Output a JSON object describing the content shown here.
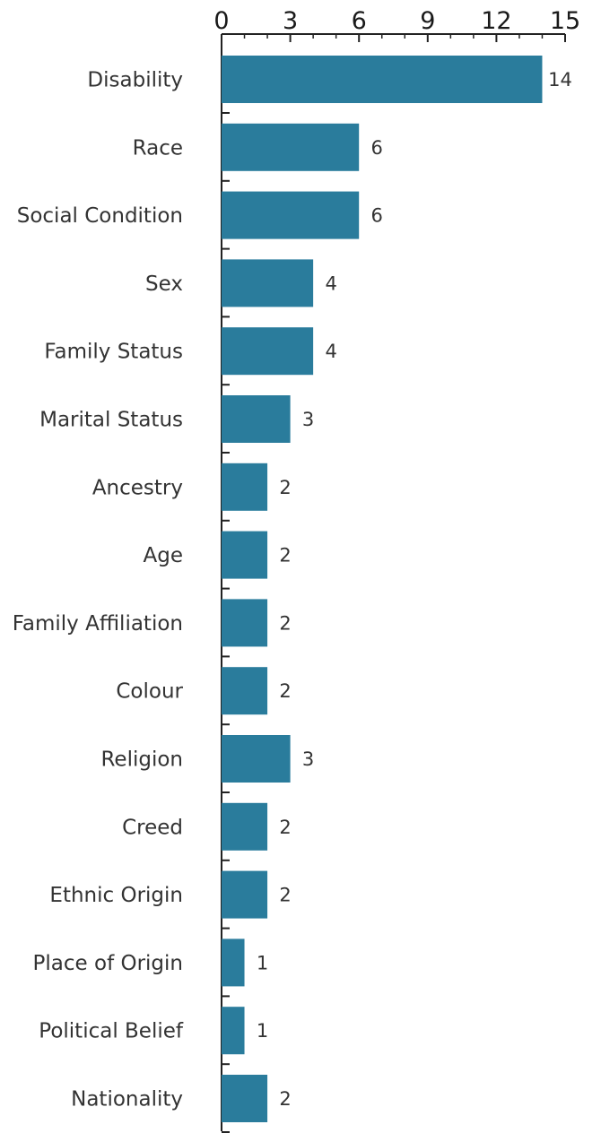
{
  "chart_data": {
    "type": "bar",
    "orientation": "horizontal",
    "categories": [
      "Disability",
      "Race",
      "Social Condition",
      "Sex",
      "Family Status",
      "Marital Status",
      "Ancestry",
      "Age",
      "Family Affiliation",
      "Colour",
      "Religion",
      "Creed",
      "Ethnic Origin",
      "Place of Origin",
      "Political Belief",
      "Nationality"
    ],
    "values": [
      14,
      6,
      6,
      4,
      4,
      3,
      2,
      2,
      2,
      2,
      3,
      2,
      2,
      1,
      1,
      2
    ],
    "value_labels": [
      "14",
      "6",
      "6",
      "4",
      "4",
      "3",
      "2",
      "2",
      "2",
      "2",
      "3",
      "2",
      "2",
      "1",
      "1",
      "2"
    ],
    "x_ticks": [
      "0",
      "3",
      "6",
      "9",
      "12",
      "15"
    ],
    "xlim": [
      0,
      15
    ],
    "xaxis_position": "top",
    "grid": false,
    "legend": "none",
    "title": "",
    "xlabel": "",
    "ylabel": "",
    "bar_color": "#2a7c9c",
    "axis_color": "#222222",
    "text_color": "#333333"
  }
}
